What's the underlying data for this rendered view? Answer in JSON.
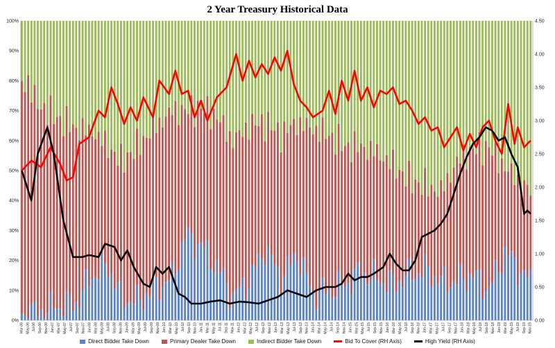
{
  "chart_data": {
    "type": "bar",
    "title": "2 Year Treasury  Historical Data",
    "stacked": true,
    "y_left": {
      "min": 0,
      "max": 100,
      "unit": "%",
      "ticks": [
        "0%",
        "10%",
        "20%",
        "30%",
        "40%",
        "50%",
        "60%",
        "70%",
        "80%",
        "90%",
        "100%"
      ]
    },
    "y_right": {
      "min": 0,
      "max": 4.5,
      "ticks": [
        "0.00",
        "0.50",
        "1.00",
        "1.50",
        "2.00",
        "2.50",
        "3.00",
        "3.50",
        "4.00",
        "4.50"
      ]
    },
    "grid": false,
    "x_labels": [
      "Mar-06",
      "May-06",
      "Jul-06",
      "Sep-06",
      "Nov-06",
      "Jan-07",
      "Mar-07",
      "May-07",
      "Jul-07",
      "Sep-07",
      "Nov-07",
      "Jan-08",
      "Mar-08",
      "May-08",
      "Jul-08",
      "Sep-08",
      "Nov-08",
      "Jan-09",
      "Mar-09",
      "May-09",
      "Jul-09",
      "Sep-09",
      "Nov-09",
      "Jan-10",
      "Mar-10",
      "May-10",
      "Jul-10",
      "Sep-10",
      "Nov-10",
      "Jan-11",
      "Mar-11",
      "May-11",
      "Jul-11",
      "Sep-11",
      "Nov-11",
      "Jan-12",
      "Mar-12",
      "May-12",
      "Jul-12",
      "Sep-12",
      "Nov-12",
      "Jan-13",
      "Mar-13",
      "May-13",
      "Jul-13",
      "Sep-13",
      "Nov-13",
      "Jan-14",
      "Mar-14",
      "May-14",
      "Jul-14",
      "Sep-14",
      "Nov-14",
      "Jan-15",
      "Mar-15",
      "May-15",
      "Jul-15",
      "Sep-15",
      "Nov-15",
      "Jan-16",
      "Mar-16",
      "May-16",
      "Jul-16",
      "Sep-16",
      "Nov-16",
      "Jan-17",
      "Mar-17",
      "May-17",
      "Jul-17",
      "Sep-17",
      "Nov-17",
      "Jan-18",
      "Mar-18",
      "May-18",
      "Jul-18",
      "Sep-18",
      "Nov-18",
      "Jan-19",
      "Mar-19",
      "May-19",
      "Jul-19",
      "Sep-19",
      "Nov-19"
    ],
    "direct_anchors": [
      [
        0,
        2
      ],
      [
        6,
        3
      ],
      [
        12,
        5
      ],
      [
        17,
        6
      ],
      [
        22,
        15
      ],
      [
        27,
        18
      ],
      [
        31,
        8
      ],
      [
        36,
        6
      ],
      [
        41,
        10
      ],
      [
        47,
        14
      ],
      [
        51,
        28
      ],
      [
        56,
        25
      ],
      [
        61,
        18
      ],
      [
        66,
        8
      ],
      [
        71,
        13
      ],
      [
        76,
        24
      ],
      [
        81,
        14
      ],
      [
        86,
        22
      ],
      [
        91,
        9
      ],
      [
        96,
        10
      ],
      [
        101,
        12
      ],
      [
        106,
        16
      ],
      [
        111,
        14
      ],
      [
        116,
        12
      ],
      [
        121,
        15
      ],
      [
        126,
        17
      ],
      [
        131,
        13
      ],
      [
        136,
        13
      ],
      [
        141,
        15
      ],
      [
        146,
        10
      ],
      [
        151,
        23
      ],
      [
        156,
        16
      ],
      [
        159,
        13
      ]
    ],
    "primary_anchors": [
      [
        0,
        78
      ],
      [
        6,
        68
      ],
      [
        12,
        62
      ],
      [
        17,
        58
      ],
      [
        22,
        48
      ],
      [
        27,
        40
      ],
      [
        31,
        45
      ],
      [
        36,
        52
      ],
      [
        41,
        54
      ],
      [
        47,
        56
      ],
      [
        51,
        42
      ],
      [
        56,
        46
      ],
      [
        61,
        50
      ],
      [
        66,
        52
      ],
      [
        71,
        52
      ],
      [
        76,
        42
      ],
      [
        81,
        48
      ],
      [
        86,
        44
      ],
      [
        91,
        55
      ],
      [
        96,
        52
      ],
      [
        101,
        46
      ],
      [
        106,
        42
      ],
      [
        111,
        42
      ],
      [
        116,
        40
      ],
      [
        121,
        32
      ],
      [
        126,
        28
      ],
      [
        131,
        30
      ],
      [
        136,
        40
      ],
      [
        141,
        42
      ],
      [
        146,
        48
      ],
      [
        151,
        28
      ],
      [
        156,
        30
      ],
      [
        159,
        30
      ]
    ],
    "series": [
      {
        "name": "Direct Bidder Take Down",
        "color": "#5b83c5"
      },
      {
        "name": "Primary Dealer Take Down",
        "color": "#c05652"
      },
      {
        "name": "Indirect Bidder Take Down",
        "color": "#9bbb59"
      },
      {
        "name": "Bid To Cover (RH Axis)",
        "color": "#ff0000",
        "axis": "right",
        "points": [
          [
            0,
            2.25
          ],
          [
            3,
            2.4
          ],
          [
            6,
            2.3
          ],
          [
            9,
            2.6
          ],
          [
            12,
            2.35
          ],
          [
            14,
            2.1
          ],
          [
            16,
            2.15
          ],
          [
            18,
            2.65
          ],
          [
            21,
            2.75
          ],
          [
            24,
            3.15
          ],
          [
            26,
            3.05
          ],
          [
            28,
            3.5
          ],
          [
            30,
            3.25
          ],
          [
            32,
            2.95
          ],
          [
            34,
            3.2
          ],
          [
            36,
            3.0
          ],
          [
            38,
            3.35
          ],
          [
            41,
            3.05
          ],
          [
            43,
            3.6
          ],
          [
            46,
            3.4
          ],
          [
            48,
            3.75
          ],
          [
            50,
            3.4
          ],
          [
            52,
            3.45
          ],
          [
            54,
            3.05
          ],
          [
            56,
            3.3
          ],
          [
            58,
            3.0
          ],
          [
            61,
            3.35
          ],
          [
            64,
            3.5
          ],
          [
            67,
            4.0
          ],
          [
            69,
            3.6
          ],
          [
            71,
            3.9
          ],
          [
            73,
            3.65
          ],
          [
            75,
            3.85
          ],
          [
            77,
            3.7
          ],
          [
            79,
            3.95
          ],
          [
            81,
            3.75
          ],
          [
            83,
            4.05
          ],
          [
            85,
            3.55
          ],
          [
            87,
            3.3
          ],
          [
            89,
            3.2
          ],
          [
            91,
            3.05
          ],
          [
            94,
            3.15
          ],
          [
            96,
            3.45
          ],
          [
            98,
            3.1
          ],
          [
            100,
            3.6
          ],
          [
            102,
            3.3
          ],
          [
            104,
            3.75
          ],
          [
            106,
            3.3
          ],
          [
            108,
            3.5
          ],
          [
            110,
            3.2
          ],
          [
            112,
            3.45
          ],
          [
            114,
            3.4
          ],
          [
            116,
            3.5
          ],
          [
            118,
            3.25
          ],
          [
            120,
            3.3
          ],
          [
            122,
            3.15
          ],
          [
            124,
            2.95
          ],
          [
            126,
            3.05
          ],
          [
            128,
            2.85
          ],
          [
            130,
            2.9
          ],
          [
            132,
            2.6
          ],
          [
            134,
            2.75
          ],
          [
            136,
            2.9
          ],
          [
            138,
            2.55
          ],
          [
            140,
            2.8
          ],
          [
            142,
            2.6
          ],
          [
            144,
            2.9
          ],
          [
            146,
            3.0
          ],
          [
            148,
            2.7
          ],
          [
            150,
            2.5
          ],
          [
            152,
            3.25
          ],
          [
            154,
            2.65
          ],
          [
            155,
            2.9
          ],
          [
            157,
            2.6
          ],
          [
            159,
            2.7
          ]
        ]
      },
      {
        "name": "High Yield (RH Axis)",
        "color": "#000000",
        "axis": "right",
        "points": [
          [
            0,
            2.25
          ],
          [
            3,
            1.8
          ],
          [
            5,
            2.5
          ],
          [
            8,
            2.9
          ],
          [
            10,
            2.5
          ],
          [
            13,
            1.5
          ],
          [
            16,
            0.95
          ],
          [
            19,
            0.95
          ],
          [
            21,
            0.98
          ],
          [
            24,
            0.95
          ],
          [
            26,
            1.15
          ],
          [
            29,
            1.1
          ],
          [
            31,
            0.9
          ],
          [
            33,
            1.05
          ],
          [
            35,
            0.8
          ],
          [
            38,
            0.55
          ],
          [
            40,
            0.5
          ],
          [
            42,
            0.8
          ],
          [
            44,
            0.7
          ],
          [
            46,
            0.8
          ],
          [
            49,
            0.4
          ],
          [
            51,
            0.35
          ],
          [
            53,
            0.25
          ],
          [
            56,
            0.25
          ],
          [
            59,
            0.28
          ],
          [
            62,
            0.3
          ],
          [
            65,
            0.25
          ],
          [
            68,
            0.28
          ],
          [
            71,
            0.27
          ],
          [
            74,
            0.25
          ],
          [
            77,
            0.3
          ],
          [
            80,
            0.35
          ],
          [
            83,
            0.45
          ],
          [
            86,
            0.4
          ],
          [
            89,
            0.35
          ],
          [
            92,
            0.45
          ],
          [
            95,
            0.5
          ],
          [
            98,
            0.5
          ],
          [
            100,
            0.55
          ],
          [
            102,
            0.7
          ],
          [
            104,
            0.6
          ],
          [
            106,
            0.65
          ],
          [
            108,
            0.65
          ],
          [
            110,
            0.7
          ],
          [
            113,
            0.8
          ],
          [
            115,
            1.0
          ],
          [
            117,
            0.85
          ],
          [
            119,
            0.75
          ],
          [
            121,
            0.75
          ],
          [
            123,
            0.9
          ],
          [
            125,
            1.25
          ],
          [
            127,
            1.3
          ],
          [
            129,
            1.35
          ],
          [
            131,
            1.45
          ],
          [
            133,
            1.6
          ],
          [
            135,
            1.9
          ],
          [
            137,
            2.2
          ],
          [
            139,
            2.45
          ],
          [
            141,
            2.65
          ],
          [
            143,
            2.75
          ],
          [
            145,
            2.9
          ],
          [
            147,
            2.85
          ],
          [
            149,
            2.7
          ],
          [
            151,
            2.75
          ],
          [
            153,
            2.5
          ],
          [
            155,
            2.3
          ],
          [
            157,
            1.6
          ],
          [
            158,
            1.65
          ],
          [
            159,
            1.6
          ]
        ]
      }
    ]
  }
}
